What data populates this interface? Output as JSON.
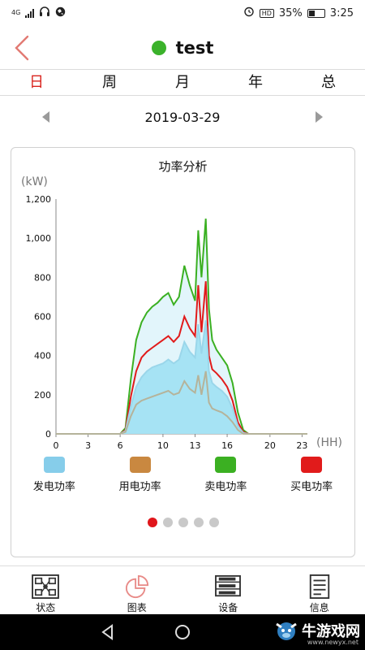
{
  "status_bar": {
    "network": "4G",
    "battery": "35%",
    "time": "3:25",
    "hd": "HD"
  },
  "header": {
    "title": "test",
    "status_color": "#3bb22b"
  },
  "tabs": [
    {
      "label": "日",
      "active": true
    },
    {
      "label": "周",
      "active": false
    },
    {
      "label": "月",
      "active": false
    },
    {
      "label": "年",
      "active": false
    },
    {
      "label": "总",
      "active": false
    }
  ],
  "date_nav": {
    "date": "2019-03-29"
  },
  "chart": {
    "title": "功率分析",
    "unit_y": "(kW)",
    "unit_x": "(HH)"
  },
  "chart_data": {
    "type": "area",
    "title": "功率分析",
    "ylabel": "(kW)",
    "xlabel": "(HH)",
    "xlim": [
      0,
      23.5
    ],
    "ylim": [
      0,
      1200
    ],
    "x_ticks": [
      "0",
      "3",
      "6",
      "10",
      "13",
      "16",
      "20",
      "23"
    ],
    "x_tick_values": [
      0,
      3,
      6,
      10,
      13,
      16,
      20,
      23
    ],
    "y_ticks": [
      "0",
      "200",
      "400",
      "600",
      "800",
      "1,000",
      "1,200"
    ],
    "y_tick_values": [
      0,
      200,
      400,
      600,
      800,
      1000,
      1200
    ],
    "grid": false,
    "x": [
      0,
      6,
      6.5,
      7,
      7.5,
      8,
      8.5,
      9,
      9.5,
      10,
      10.5,
      11,
      11.5,
      12,
      12.5,
      13,
      13.3,
      13.6,
      14,
      14.3,
      14.6,
      15,
      15.5,
      16,
      16.5,
      17,
      17.5,
      18,
      23.5
    ],
    "series": [
      {
        "name": "卖电功率",
        "color": "#3bb022",
        "fill": "#e2f5fb",
        "values": [
          0,
          0,
          30,
          280,
          480,
          570,
          620,
          650,
          670,
          700,
          720,
          660,
          700,
          860,
          760,
          680,
          1040,
          800,
          1100,
          640,
          480,
          430,
          390,
          350,
          260,
          110,
          20,
          0,
          0
        ]
      },
      {
        "name": "买电功率",
        "color": "#e11b1b",
        "fill": "none",
        "values": [
          0,
          0,
          20,
          190,
          320,
          390,
          420,
          440,
          460,
          480,
          500,
          470,
          500,
          600,
          540,
          500,
          760,
          520,
          780,
          400,
          330,
          310,
          280,
          240,
          170,
          60,
          10,
          0,
          0
        ]
      },
      {
        "name": "发电功率",
        "color": "#9ad6ea",
        "fill": "#a6e3f4",
        "values": [
          0,
          0,
          15,
          140,
          240,
          290,
          320,
          340,
          350,
          360,
          380,
          360,
          380,
          470,
          420,
          390,
          560,
          410,
          580,
          320,
          260,
          240,
          220,
          190,
          130,
          40,
          5,
          0,
          0
        ]
      },
      {
        "name": "用电功率",
        "color": "#b5b39a",
        "fill": "none",
        "values": [
          0,
          0,
          10,
          90,
          150,
          170,
          180,
          190,
          200,
          210,
          220,
          200,
          210,
          270,
          230,
          210,
          300,
          200,
          320,
          160,
          130,
          120,
          110,
          90,
          60,
          20,
          0,
          0,
          0
        ]
      }
    ]
  },
  "legend": [
    {
      "label": "发电功率",
      "color": "#86cdea"
    },
    {
      "label": "用电功率",
      "color": "#c98840"
    },
    {
      "label": "卖电功率",
      "color": "#3bb022"
    },
    {
      "label": "买电功率",
      "color": "#e11b1b"
    }
  ],
  "pager": {
    "count": 5,
    "active": 0
  },
  "bottom_nav": [
    {
      "label": "状态",
      "icon": "status-grid-icon",
      "active": false
    },
    {
      "label": "图表",
      "icon": "pie-chart-icon",
      "active": true
    },
    {
      "label": "设备",
      "icon": "device-icon",
      "active": false
    },
    {
      "label": "信息",
      "icon": "document-icon",
      "active": false
    }
  ],
  "watermark": {
    "text": "牛游戏网",
    "sub": "www.newyx.net"
  },
  "colors": {
    "accent": "#d9231d",
    "pager_active": "#e0161b",
    "inactive_icon": "#333333",
    "active_icon": "#e88b88"
  }
}
